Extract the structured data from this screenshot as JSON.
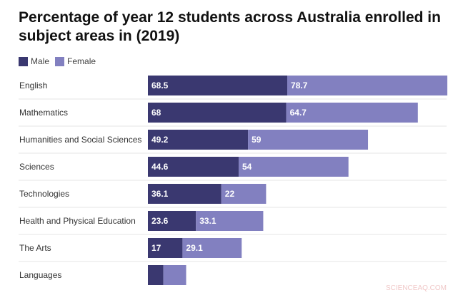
{
  "chart_data": {
    "type": "bar",
    "orientation": "horizontal-stacked",
    "title": "Percentage of year 12 students across Australia enrolled in subject areas in (2019)",
    "categories": [
      "English",
      "Mathematics",
      "Humanities and Social Sciences",
      "Sciences",
      "Technologies",
      "Health and Physical Education",
      "The Arts",
      "Languages"
    ],
    "series": [
      {
        "name": "Male",
        "color": "#3a3870",
        "values": [
          68.5,
          68,
          49.2,
          44.6,
          36.1,
          23.6,
          17,
          7.6
        ],
        "labels": [
          "68.5",
          "68",
          "49.2",
          "44.6",
          "36.1",
          "23.6",
          "17",
          ""
        ]
      },
      {
        "name": "Female",
        "color": "#8280c0",
        "values": [
          78.7,
          64.7,
          59,
          54,
          22,
          33.1,
          29.1,
          11.2
        ],
        "labels": [
          "78.7",
          "64.7",
          "59",
          "54",
          "22",
          "33.1",
          "29.1",
          ""
        ]
      }
    ],
    "xlabel": "",
    "ylabel": "",
    "grid": false,
    "legend": "top-left"
  },
  "watermark": "SCIENCEAQ.COM"
}
